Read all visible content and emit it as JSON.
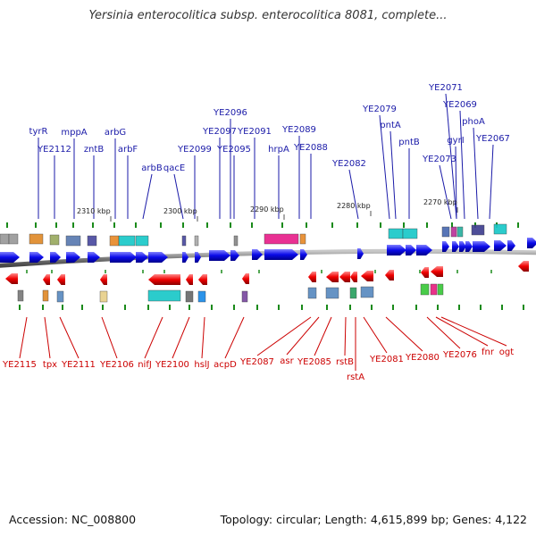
{
  "title": "Yersinia enterocolitica subsp. enterocolitica 8081, complete...",
  "footer": {
    "accession": "Accession: NC_008800",
    "topology": "Topology: circular; Length: 4,615,899 bp; Genes: 4,122"
  },
  "colors": {
    "forward_label": "#1a1aa8",
    "reverse_label": "#cc0000",
    "forward_arrow": "#0a0ae0",
    "reverse_arrow": "#ee0000",
    "backbone": "#7a7a7a",
    "tick": "#1a8a1a"
  },
  "scale_labels": [
    {
      "text": "2310 kbp"
    },
    {
      "text": "2300 kbp"
    },
    {
      "text": "2290 kbp"
    },
    {
      "text": "2280 kbp"
    },
    {
      "text": "2270 kbp"
    }
  ],
  "forward_genes": [
    {
      "label": "tyrR"
    },
    {
      "label": "YE2112"
    },
    {
      "label": "mppA"
    },
    {
      "label": "zntB"
    },
    {
      "label": "arbG"
    },
    {
      "label": "arbF"
    },
    {
      "label": "arbB"
    },
    {
      "label": "qacE"
    },
    {
      "label": "YE2099"
    },
    {
      "label": "YE2096"
    },
    {
      "label": "YE2097"
    },
    {
      "label": "YE2095"
    },
    {
      "label": "YE2091"
    },
    {
      "label": "hrpA"
    },
    {
      "label": "YE2089"
    },
    {
      "label": "YE2088"
    },
    {
      "label": "YE2082"
    },
    {
      "label": "YE2079"
    },
    {
      "label": "pntA"
    },
    {
      "label": "pntB"
    },
    {
      "label": "YE2073"
    },
    {
      "label": "YE2071"
    },
    {
      "label": "gyrI"
    },
    {
      "label": "YE2069"
    },
    {
      "label": "phoA"
    },
    {
      "label": "YE2067"
    }
  ],
  "reverse_genes": [
    {
      "label": "YE2115"
    },
    {
      "label": "tpx"
    },
    {
      "label": "YE2111"
    },
    {
      "label": "YE2106"
    },
    {
      "label": "nifJ"
    },
    {
      "label": "YE2100"
    },
    {
      "label": "hslJ"
    },
    {
      "label": "acpD"
    },
    {
      "label": "YE2087"
    },
    {
      "label": "asr"
    },
    {
      "label": "YE2085"
    },
    {
      "label": "rstB"
    },
    {
      "label": "rstA"
    },
    {
      "label": "YE2081"
    },
    {
      "label": "YE2080"
    },
    {
      "label": "YE2076"
    },
    {
      "label": "fnr"
    },
    {
      "label": "ogt"
    }
  ]
}
